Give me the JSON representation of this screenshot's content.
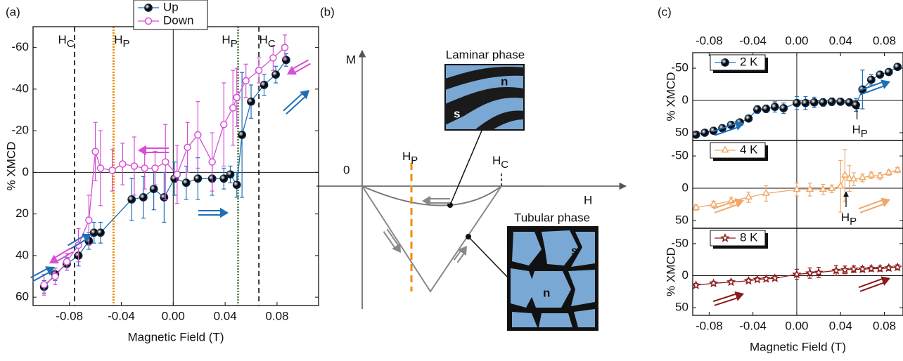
{
  "chart_data": [
    {
      "type": "line",
      "panel": "(a)",
      "x_label": "Magnetic Field (T)",
      "y_label": "% XMCD",
      "xlim": [
        -0.108,
        0.112
      ],
      "ylim": [
        64,
        -70
      ],
      "xticks": [
        -0.08,
        -0.04,
        {
          "value": 0,
          "label": "0.00"
        },
        0.04,
        0.08
      ],
      "yticks": [
        60,
        40,
        20,
        0,
        -20,
        -40,
        -60
      ],
      "zero_lines": true,
      "vlines": [
        {
          "x": -0.076,
          "color": "#000000",
          "style": "dashed",
          "main": "H",
          "sub": "C"
        },
        {
          "x": -0.046,
          "color": "#f08c00",
          "style": "dotted",
          "main": "H",
          "sub": "P"
        },
        {
          "x": 0.05,
          "color": "#6b8e5a",
          "style": "dotted",
          "main": "H",
          "sub": "P"
        },
        {
          "x": 0.066,
          "color": "#000000",
          "style": "dashed",
          "main": "H",
          "sub": "C"
        }
      ],
      "series": [
        {
          "name": "Up",
          "color": "#1f6fb5",
          "marker": "circle-filled",
          "x": [
            -0.0995,
            -0.091,
            -0.082,
            -0.073,
            -0.065,
            -0.061,
            -0.056,
            -0.032,
            -0.023,
            -0.015,
            -0.007,
            0.001,
            0.01,
            0.019,
            0.03,
            0.039,
            0.044,
            0.049,
            0.053,
            0.06,
            0.07,
            0.079,
            0.087
          ],
          "values": [
            55,
            49,
            44,
            40,
            33,
            29,
            29,
            13,
            12,
            8,
            12,
            3,
            5,
            3,
            3,
            3,
            1,
            6,
            -18,
            -34,
            -42,
            -47,
            -54
          ],
          "errors": [
            3,
            3,
            3,
            5,
            4,
            5,
            5,
            10,
            10,
            10,
            12,
            8,
            8,
            10,
            8,
            5,
            4,
            6,
            30,
            8,
            5,
            4,
            3
          ]
        },
        {
          "name": "Down",
          "color": "#d64fd6",
          "marker": "circle-open",
          "x": [
            -0.0995,
            -0.091,
            -0.082,
            -0.073,
            -0.065,
            -0.06,
            -0.056,
            -0.047,
            -0.039,
            -0.03,
            -0.022,
            -0.014,
            -0.006,
            0.003,
            0.011,
            0.019,
            0.03,
            0.039,
            0.046,
            0.049,
            0.056,
            0.066,
            0.077,
            0.086
          ],
          "values": [
            54,
            50,
            43,
            35,
            23,
            -10,
            -2,
            -1,
            -4,
            -3,
            -2,
            -2,
            -5,
            1,
            -12,
            -18,
            -5,
            -23,
            -31,
            -36,
            -44,
            -49,
            -55,
            -60
          ],
          "errors": [
            5,
            4,
            4,
            8,
            12,
            14,
            18,
            10,
            10,
            14,
            10,
            8,
            18,
            14,
            12,
            16,
            14,
            20,
            18,
            14,
            8,
            6,
            6,
            6
          ]
        }
      ]
    },
    {
      "type": "line",
      "panel": "(c)",
      "y_label": "% XMCD",
      "xlim": [
        -0.095,
        0.097
      ],
      "ylim": [
        62,
        -74
      ],
      "x2ticks": [
        -0.08,
        -0.04,
        {
          "value": 0,
          "label": "0.00"
        },
        0.04,
        0.08
      ],
      "yticks": [
        50,
        0,
        -50
      ],
      "zero_lines": true,
      "annotations": [
        {
          "x": 0.055,
          "main": "H",
          "sub": "P"
        }
      ],
      "series": [
        {
          "name": "2 K",
          "color": "#1f6fb5",
          "marker": "circle-filled",
          "x": [
            -0.092,
            -0.084,
            -0.076,
            -0.068,
            -0.06,
            -0.052,
            -0.044,
            -0.036,
            -0.028,
            -0.02,
            -0.012,
            0.0,
            0.008,
            0.016,
            0.024,
            0.032,
            0.04,
            0.048,
            0.054,
            0.06,
            0.068,
            0.076,
            0.084,
            0.092
          ],
          "values": [
            53,
            50,
            47,
            43,
            38,
            34,
            28,
            14,
            13,
            10,
            12,
            4,
            4,
            3,
            3,
            2,
            2,
            3,
            7,
            -17,
            -32,
            -40,
            -44,
            -52
          ],
          "errors": [
            3,
            3,
            3,
            3,
            3,
            4,
            5,
            6,
            6,
            8,
            8,
            10,
            10,
            8,
            6,
            6,
            5,
            5,
            10,
            30,
            8,
            5,
            4,
            3
          ]
        }
      ]
    },
    {
      "type": "line",
      "xlim": [
        -0.095,
        0.097
      ],
      "ylim": [
        62,
        -74
      ],
      "yticks": [
        50,
        0,
        -50
      ],
      "zero_lines": true,
      "annotations": [
        {
          "x": 0.045,
          "main": "H",
          "sub": "P"
        }
      ],
      "series": [
        {
          "name": "4 K",
          "color": "#f0a868",
          "marker": "triangle-open",
          "x": [
            -0.092,
            -0.076,
            -0.06,
            -0.044,
            -0.028,
            0.0,
            0.012,
            0.024,
            0.032,
            0.04,
            0.044,
            0.048,
            0.052,
            0.06,
            0.068,
            0.076,
            0.084,
            0.092
          ],
          "values": [
            30,
            25,
            20,
            14,
            8,
            2,
            2,
            2,
            1,
            -3,
            -20,
            -15,
            -14,
            -16,
            -20,
            -19,
            -24,
            -28
          ],
          "errors": [
            4,
            5,
            6,
            8,
            12,
            10,
            10,
            8,
            6,
            40,
            40,
            20,
            10,
            6,
            5,
            5,
            4,
            4
          ]
        }
      ]
    },
    {
      "type": "line",
      "x_label": "Magnetic Field (T)",
      "y_label": "% XMCD",
      "xlim": [
        -0.095,
        0.097
      ],
      "ylim": [
        62,
        -74
      ],
      "xticks": [
        -0.08,
        -0.04,
        {
          "value": 0,
          "label": "0.00"
        },
        0.04,
        0.08
      ],
      "yticks": [
        50,
        0,
        -50
      ],
      "zero_lines": true,
      "series": [
        {
          "name": "8 K",
          "color": "#8b1a1a",
          "marker": "star-open",
          "x": [
            -0.092,
            -0.076,
            -0.06,
            -0.044,
            -0.036,
            -0.028,
            -0.02,
            0.0,
            0.012,
            0.02,
            0.036,
            0.044,
            0.052,
            0.06,
            0.068,
            0.076,
            0.084,
            0.092
          ],
          "values": [
            15,
            12,
            10,
            8,
            6,
            5,
            4,
            -2,
            -4,
            -5,
            -8,
            -9,
            -10,
            -10,
            -11,
            -11,
            -12,
            -13
          ],
          "errors": [
            3,
            3,
            3,
            3,
            3,
            3,
            3,
            8,
            8,
            8,
            8,
            6,
            5,
            4,
            4,
            4,
            4,
            4
          ]
        }
      ]
    }
  ],
  "diagram": {
    "panel": "(b)",
    "m_axis": "M",
    "h_axis": "H",
    "origin": "0",
    "hp": {
      "main": "H",
      "sub": "P"
    },
    "hc": {
      "main": "H",
      "sub": "C"
    },
    "laminar": {
      "title": "Laminar phase",
      "labels": [
        "n",
        "s"
      ]
    },
    "tubular": {
      "title": "Tubular phase",
      "labels": [
        "s",
        "n"
      ]
    }
  }
}
